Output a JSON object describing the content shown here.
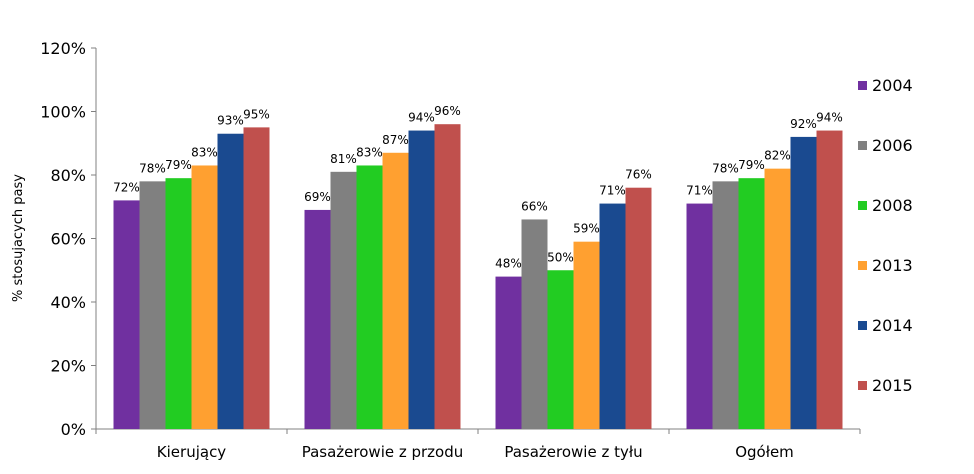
{
  "chart_data": {
    "type": "bar",
    "title": "",
    "xlabel": "",
    "ylabel": "% stosujacych pasy",
    "ylim": [
      0,
      120
    ],
    "yticks": [
      "0%",
      "20%",
      "40%",
      "60%",
      "80%",
      "100%",
      "120%"
    ],
    "grid": false,
    "legend_position": "right",
    "categories": [
      "Kierujący",
      "Pasażerowie z przodu",
      "Pasażerowie z tyłu",
      "Ogółem"
    ],
    "series": [
      {
        "name": "2004",
        "color": "#7030a0",
        "values": [
          72,
          69,
          48,
          71
        ],
        "labels": [
          "72%",
          "69%",
          "48%",
          "71%"
        ]
      },
      {
        "name": "2006",
        "color": "#808080",
        "values": [
          78,
          81,
          66,
          78
        ],
        "labels": [
          "78%",
          "81%",
          "66%",
          "78%"
        ]
      },
      {
        "name": "2008",
        "color": "#22cc22",
        "values": [
          79,
          83,
          50,
          79
        ],
        "labels": [
          "79%",
          "83%",
          "50%",
          "79%"
        ]
      },
      {
        "name": "2013",
        "color": "#ffa030",
        "values": [
          83,
          87,
          59,
          82
        ],
        "labels": [
          "83%",
          "87%",
          "59%",
          "82%"
        ]
      },
      {
        "name": "2014",
        "color": "#1a4a90",
        "values": [
          93,
          94,
          71,
          92
        ],
        "labels": [
          "93%",
          "94%",
          "71%",
          "92%"
        ]
      },
      {
        "name": "2015",
        "color": "#c0504d",
        "values": [
          95,
          96,
          76,
          94
        ],
        "labels": [
          "95%",
          "96%",
          "76%",
          "94%"
        ]
      }
    ]
  }
}
